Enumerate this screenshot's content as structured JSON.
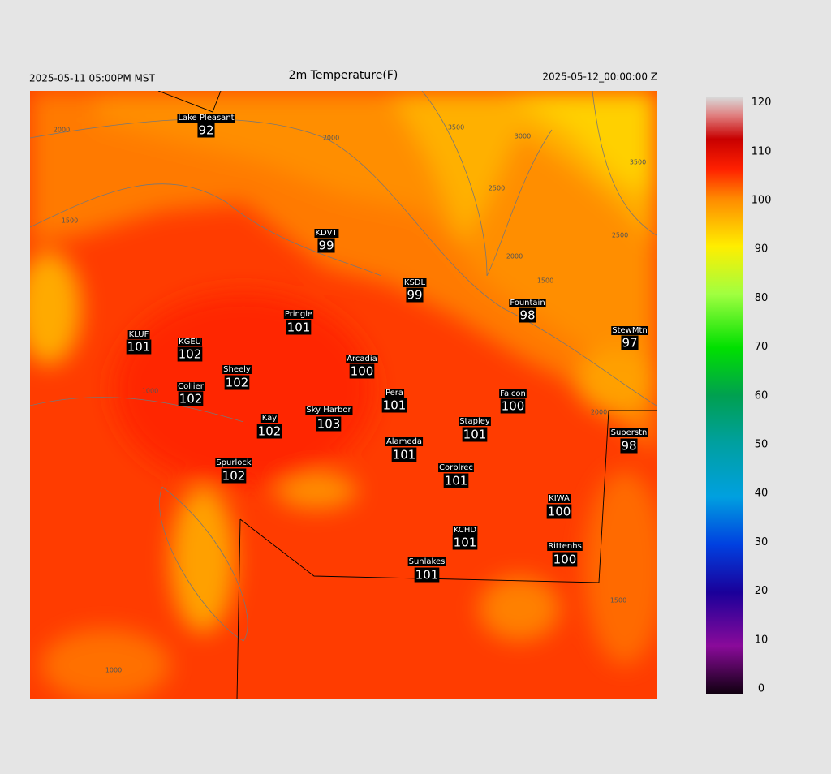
{
  "header": {
    "left": "2025-05-11 05:00PM MST",
    "title": "2m Temperature(F)",
    "right": "2025-05-12_00:00:00 Z"
  },
  "stations": [
    {
      "name": "Lake Pleasant",
      "value": "92"
    },
    {
      "name": "KDVT",
      "value": "99"
    },
    {
      "name": "KSDL",
      "value": "99"
    },
    {
      "name": "Pringle",
      "value": "101"
    },
    {
      "name": "Fountain",
      "value": "98"
    },
    {
      "name": "KLUF",
      "value": "101"
    },
    {
      "name": "KGEU",
      "value": "102"
    },
    {
      "name": "StewMtn",
      "value": "97"
    },
    {
      "name": "Arcadia",
      "value": "100"
    },
    {
      "name": "Sheely",
      "value": "102"
    },
    {
      "name": "Collier",
      "value": "102"
    },
    {
      "name": "Pera",
      "value": "101"
    },
    {
      "name": "Falcon",
      "value": "100"
    },
    {
      "name": "Sky Harbor",
      "value": "103"
    },
    {
      "name": "Kay",
      "value": "102"
    },
    {
      "name": "Stapley",
      "value": "101"
    },
    {
      "name": "Superstn",
      "value": "98"
    },
    {
      "name": "Alameda",
      "value": "101"
    },
    {
      "name": "Spurlock",
      "value": "102"
    },
    {
      "name": "Corblrec",
      "value": "101"
    },
    {
      "name": "KIWA",
      "value": "100"
    },
    {
      "name": "KCHD",
      "value": "101"
    },
    {
      "name": "Rittenhs",
      "value": "100"
    },
    {
      "name": "Sunlakes",
      "value": "101"
    }
  ],
  "contour_labels": [
    "2000",
    "2000",
    "3500",
    "3000",
    "2500",
    "3500",
    "2500",
    "2000",
    "1500",
    "1500",
    "1000",
    "2000",
    "1500",
    "1000"
  ],
  "colorbar": {
    "ticks": [
      0,
      10,
      20,
      30,
      40,
      50,
      60,
      70,
      80,
      90,
      100,
      110,
      120
    ]
  }
}
